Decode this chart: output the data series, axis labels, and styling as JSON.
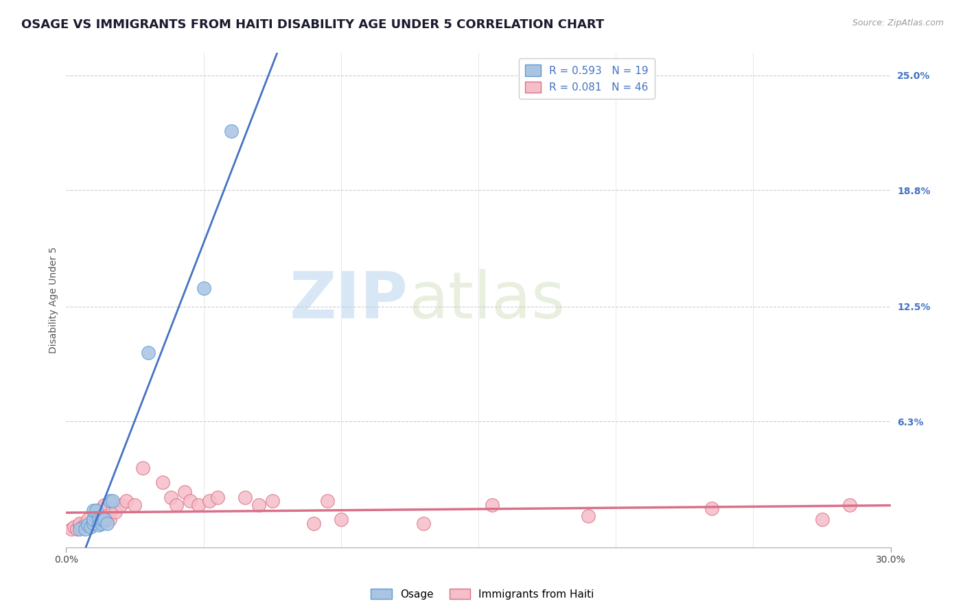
{
  "title": "OSAGE VS IMMIGRANTS FROM HAITI DISABILITY AGE UNDER 5 CORRELATION CHART",
  "source": "Source: ZipAtlas.com",
  "ylabel": "Disability Age Under 5",
  "xlim": [
    0.0,
    0.3
  ],
  "ylim": [
    -0.005,
    0.262
  ],
  "ytick_labels": [
    "6.3%",
    "12.5%",
    "18.8%",
    "25.0%"
  ],
  "ytick_positions": [
    0.063,
    0.125,
    0.188,
    0.25
  ],
  "background_color": "#ffffff",
  "osage_color": "#aac4e2",
  "osage_edge_color": "#5b9bd5",
  "haiti_color": "#f5bec8",
  "haiti_edge_color": "#d97085",
  "osage_line_color": "#4472c4",
  "haiti_line_color": "#d9708a",
  "R_osage": 0.593,
  "N_osage": 19,
  "R_haiti": 0.081,
  "N_haiti": 46,
  "osage_x": [
    0.005,
    0.007,
    0.008,
    0.009,
    0.01,
    0.01,
    0.01,
    0.011,
    0.012,
    0.012,
    0.013,
    0.013,
    0.014,
    0.015,
    0.016,
    0.017,
    0.03,
    0.05,
    0.06
  ],
  "osage_y": [
    0.005,
    0.005,
    0.007,
    0.006,
    0.008,
    0.01,
    0.015,
    0.015,
    0.01,
    0.007,
    0.008,
    0.01,
    0.01,
    0.008,
    0.02,
    0.02,
    0.1,
    0.135,
    0.22
  ],
  "haiti_x": [
    0.002,
    0.003,
    0.004,
    0.005,
    0.005,
    0.006,
    0.007,
    0.008,
    0.008,
    0.009,
    0.01,
    0.01,
    0.011,
    0.012,
    0.012,
    0.013,
    0.014,
    0.015,
    0.015,
    0.016,
    0.017,
    0.018,
    0.02,
    0.022,
    0.025,
    0.028,
    0.035,
    0.038,
    0.04,
    0.043,
    0.045,
    0.048,
    0.052,
    0.055,
    0.065,
    0.07,
    0.075,
    0.09,
    0.095,
    0.1,
    0.13,
    0.155,
    0.19,
    0.235,
    0.275,
    0.285
  ],
  "haiti_y": [
    0.005,
    0.006,
    0.005,
    0.007,
    0.008,
    0.006,
    0.007,
    0.008,
    0.01,
    0.007,
    0.008,
    0.01,
    0.009,
    0.012,
    0.009,
    0.016,
    0.018,
    0.01,
    0.012,
    0.01,
    0.016,
    0.014,
    0.018,
    0.02,
    0.018,
    0.038,
    0.03,
    0.022,
    0.018,
    0.025,
    0.02,
    0.018,
    0.02,
    0.022,
    0.022,
    0.018,
    0.02,
    0.008,
    0.02,
    0.01,
    0.008,
    0.018,
    0.012,
    0.016,
    0.01,
    0.018
  ],
  "watermark_zip": "ZIP",
  "watermark_atlas": "atlas",
  "title_fontsize": 13,
  "axis_label_fontsize": 10,
  "tick_fontsize": 10,
  "legend_fontsize": 11,
  "source_fontsize": 9
}
